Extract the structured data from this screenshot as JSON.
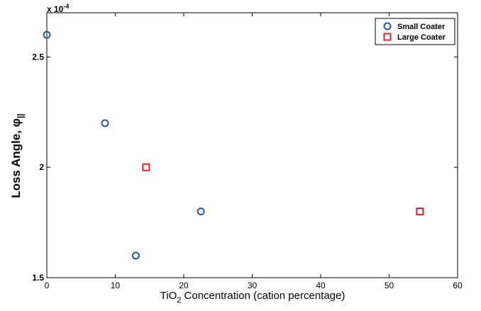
{
  "chart_data": {
    "type": "scatter",
    "title": "",
    "xlabel": "TiO2 Concentration (cation percentage)",
    "xlabel_parts": {
      "pre": "TiO",
      "sub": "2",
      "post": " Concentration (cation percentage)"
    },
    "ylabel": "Loss Angle, φ||",
    "ylabel_parts": {
      "pre": "Loss Angle, ",
      "symbol": "φ",
      "sub": "||"
    },
    "xlim": [
      0,
      60
    ],
    "ylim": [
      1.5,
      2.7
    ],
    "y_exponent_label": "x 10",
    "y_exponent_power": "-4",
    "x_ticks": [
      0,
      10,
      20,
      30,
      40,
      50,
      60
    ],
    "x_tick_labels": [
      "0",
      "10",
      "20",
      "30",
      "40",
      "50",
      "60"
    ],
    "y_ticks": [
      1.5,
      2,
      2.5
    ],
    "y_tick_labels": [
      "1.5",
      "2",
      "2.5"
    ],
    "grid": false,
    "legend_position": "top-right",
    "series": [
      {
        "name": "Small Coater",
        "marker": "circle",
        "color": "#2c56a8",
        "x": [
          0,
          8.5,
          13,
          22.5
        ],
        "y": [
          2.6,
          2.2,
          1.6,
          1.8
        ]
      },
      {
        "name": "Large Coater",
        "marker": "square",
        "color": "#e8202a",
        "x": [
          14.5,
          54.5
        ],
        "y": [
          2.0,
          1.8
        ]
      }
    ]
  }
}
